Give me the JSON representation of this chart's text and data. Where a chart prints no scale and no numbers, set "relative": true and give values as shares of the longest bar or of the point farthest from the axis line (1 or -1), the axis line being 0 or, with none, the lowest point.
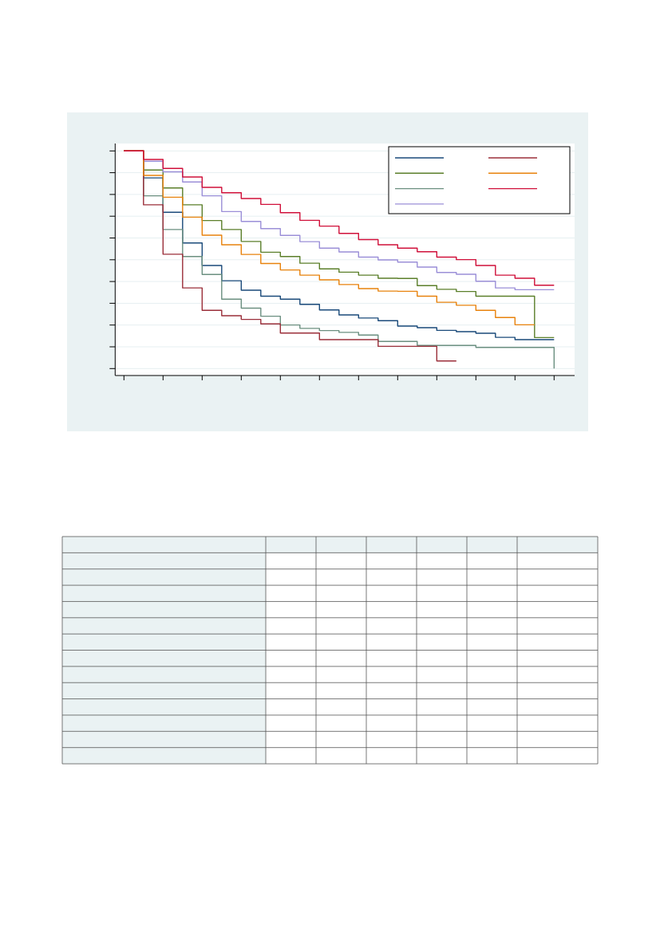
{
  "chart_data": {
    "type": "step",
    "relative": true,
    "grid": "y",
    "categories": [
      null,
      null,
      null,
      null,
      null,
      null,
      null,
      null,
      null,
      null,
      null,
      null,
      null,
      null,
      null,
      null,
      null,
      null,
      null,
      null,
      null,
      null,
      null
    ],
    "series": [
      {
        "color": "#1a4a7a",
        "values": [
          1,
          0.88,
          0.727,
          0.59,
          0.49,
          0.422,
          0.38,
          0.353,
          0.34,
          0.317,
          0.292,
          0.27,
          0.256,
          0.244,
          0.22,
          0.213,
          0.201,
          0.195,
          0.188,
          0.17,
          0.16,
          0.16,
          0.16
        ]
      },
      {
        "color": "#5b7f2a",
        "values": [
          1,
          0.915,
          0.835,
          0.76,
          0.69,
          0.65,
          0.597,
          0.549,
          0.53,
          0.5,
          0.475,
          0.46,
          0.447,
          0.433,
          0.432,
          0.4,
          0.384,
          0.374,
          0.353,
          0.353,
          0.353,
          0.169,
          0.169
        ]
      },
      {
        "color": "#6b8f80",
        "values": [
          1,
          0.8,
          0.65,
          0.53,
          0.45,
          0.34,
          0.3,
          0.264,
          0.225,
          0.21,
          0.2,
          0.192,
          0.18,
          0.152,
          0.152,
          0.134,
          0.134,
          0.134,
          0.125,
          0.125,
          0.125,
          0.125,
          0.031
        ]
      },
      {
        "color": "#9b8fd8",
        "values": [
          1,
          0.954,
          0.907,
          0.862,
          0.8,
          0.73,
          0.686,
          0.654,
          0.624,
          0.596,
          0.567,
          0.55,
          0.527,
          0.515,
          0.505,
          0.483,
          0.459,
          0.451,
          0.42,
          0.39,
          0.382,
          0.382,
          0.382
        ]
      },
      {
        "color": "#9b2f3a",
        "values": [
          1,
          0.76,
          0.54,
          0.39,
          0.29,
          0.266,
          0.25,
          0.23,
          0.189,
          0.189,
          0.16,
          0.16,
          0.16,
          0.13,
          0.13,
          0.13,
          0.065,
          0.065,
          null,
          null,
          null,
          null,
          null
        ]
      },
      {
        "color": "#e8820c",
        "values": [
          1,
          0.891,
          0.794,
          0.705,
          0.625,
          0.582,
          0.539,
          0.499,
          0.47,
          0.447,
          0.426,
          0.405,
          0.387,
          0.376,
          0.375,
          0.353,
          0.326,
          0.313,
          0.29,
          0.258,
          0.226,
          0.226,
          null
        ]
      },
      {
        "color": "#d0103a",
        "values": [
          1,
          0.962,
          0.922,
          0.884,
          0.838,
          0.814,
          0.788,
          0.762,
          0.725,
          0.691,
          0.665,
          0.633,
          0.605,
          0.582,
          0.567,
          0.551,
          0.527,
          0.516,
          0.49,
          0.447,
          0.433,
          0.402,
          0.402
        ]
      }
    ]
  }
}
